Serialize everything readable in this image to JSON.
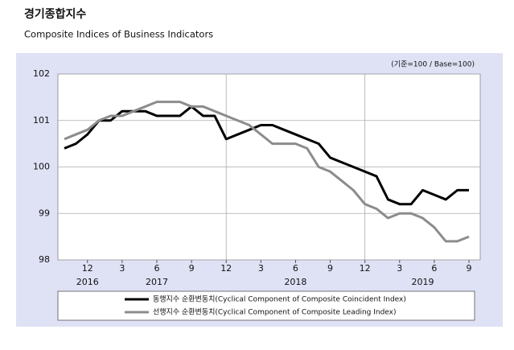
{
  "chart_data": {
    "type": "line",
    "title": "경기종합지수",
    "subtitle": "Composite Indices of Business Indicators",
    "unit_note": "(기준=100 / Base=100)",
    "categories": [
      null,
      null,
      "12",
      null,
      null,
      "3",
      null,
      null,
      "6",
      null,
      null,
      "9",
      null,
      null,
      "12",
      null,
      null,
      "3",
      null,
      null,
      "6",
      null,
      null,
      "9",
      null,
      null,
      "12",
      null,
      null,
      "3",
      null,
      null,
      "6",
      null,
      null,
      "9"
    ],
    "year_categories": [
      null,
      null,
      "2016",
      null,
      null,
      null,
      null,
      null,
      "2017",
      null,
      null,
      null,
      null,
      null,
      null,
      null,
      null,
      null,
      null,
      null,
      "2018",
      null,
      null,
      null,
      null,
      null,
      null,
      null,
      null,
      null,
      null,
      "2019",
      null,
      null,
      null,
      null
    ],
    "series": [
      {
        "name": "동행지수 순환변동치(Cyclical Component of Composite Coincident Index)",
        "color": "#000000",
        "values": [
          100.4,
          100.5,
          100.7,
          101.0,
          101.0,
          101.2,
          101.2,
          101.2,
          101.1,
          101.1,
          101.1,
          101.3,
          101.1,
          101.1,
          100.6,
          100.7,
          100.8,
          100.9,
          100.9,
          100.8,
          100.7,
          100.6,
          100.5,
          100.2,
          100.1,
          100.0,
          99.9,
          99.8,
          99.3,
          99.2,
          99.2,
          99.5,
          99.4,
          99.3,
          99.5,
          99.5
        ]
      },
      {
        "name": "선행지수 순환변동치(Cyclical Component of Composite Leading Index)",
        "color": "#8c8c8c",
        "values": [
          100.6,
          100.7,
          100.8,
          101.0,
          101.1,
          101.1,
          101.2,
          101.3,
          101.4,
          101.4,
          101.4,
          101.3,
          101.3,
          101.2,
          101.1,
          101.0,
          100.9,
          100.7,
          100.5,
          100.5,
          100.5,
          100.4,
          100.0,
          99.9,
          99.7,
          99.5,
          99.2,
          99.1,
          98.9,
          99.0,
          99.0,
          98.9,
          98.7,
          98.4,
          98.4,
          98.5
        ]
      }
    ],
    "ylim": [
      98,
      102
    ],
    "yticks": [
      98,
      99,
      100,
      101,
      102
    ],
    "grid": true
  }
}
